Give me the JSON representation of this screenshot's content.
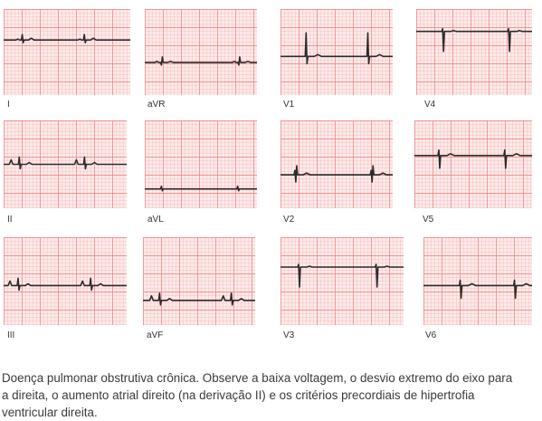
{
  "figure": {
    "grid_color": "#f08a8a",
    "grid_background": "#fdeaea",
    "trace_color": "#2b2b2b",
    "leads": [
      {
        "id": "I",
        "label": "I"
      },
      {
        "id": "aVR",
        "label": "aVR"
      },
      {
        "id": "V1",
        "label": "V1"
      },
      {
        "id": "V4",
        "label": "V4"
      },
      {
        "id": "II",
        "label": "II"
      },
      {
        "id": "aVL",
        "label": "aVL"
      },
      {
        "id": "V2",
        "label": "V2"
      },
      {
        "id": "V5",
        "label": "V5"
      },
      {
        "id": "III",
        "label": "III"
      },
      {
        "id": "aVF",
        "label": "aVF"
      },
      {
        "id": "V3",
        "label": "V3"
      },
      {
        "id": "V6",
        "label": "V6"
      }
    ]
  },
  "caption": "Doença pulmonar obstrutiva crônica. Observe a baixa voltagem, o desvio extremo do eixo para a direita, o aumento atrial direito (na derivação II) e os critérios precordiais de hipertrofia ventricular direita."
}
